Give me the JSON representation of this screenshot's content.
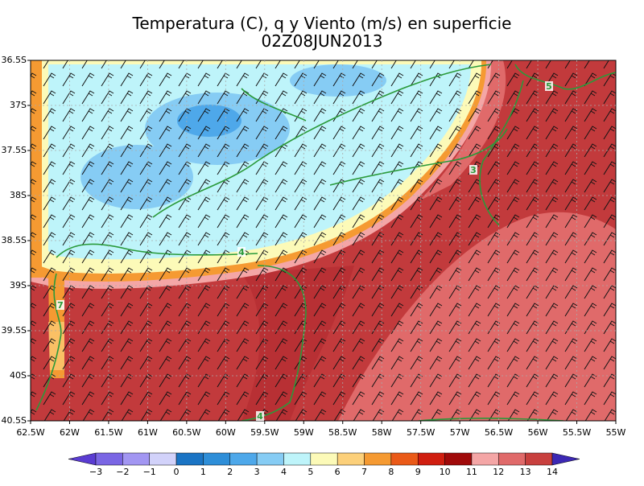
{
  "header": {
    "title": "Temperatura (C), q y Viento (m/s) en superficie",
    "subtitle": "02Z08JUN2013"
  },
  "map": {
    "lat_labels": [
      "36.5S",
      "37S",
      "37.5S",
      "38S",
      "38.5S",
      "39S",
      "39.5S",
      "40S",
      "40.5S"
    ],
    "lon_labels": [
      "62.5W",
      "62W",
      "61.5W",
      "61W",
      "60.5W",
      "60W",
      "59.5W",
      "59W",
      "58.5W",
      "58W",
      "57.5W",
      "57W",
      "56.5W",
      "56W",
      "55.5W",
      "55W"
    ],
    "contour_labels": [
      "5",
      "3",
      "4",
      "7",
      "4"
    ]
  },
  "colorbar": {
    "labels": [
      "−3",
      "−2",
      "−1",
      "0",
      "1",
      "2",
      "3",
      "4",
      "5",
      "6",
      "7",
      "8",
      "9",
      "10",
      "11",
      "12",
      "13",
      "14"
    ],
    "colors": [
      "#5a3cd2",
      "#7a66e4",
      "#a296f2",
      "#d2d2fa",
      "#1a74c4",
      "#2e8ed8",
      "#4ea8ea",
      "#86ccf4",
      "#bef4fa",
      "#fcfab8",
      "#fcd07a",
      "#f59a32",
      "#ea5a18",
      "#d01e10",
      "#a00a0a",
      "#f4a6a6",
      "#e06a6a",
      "#c8403e",
      "#3c28b4"
    ]
  }
}
